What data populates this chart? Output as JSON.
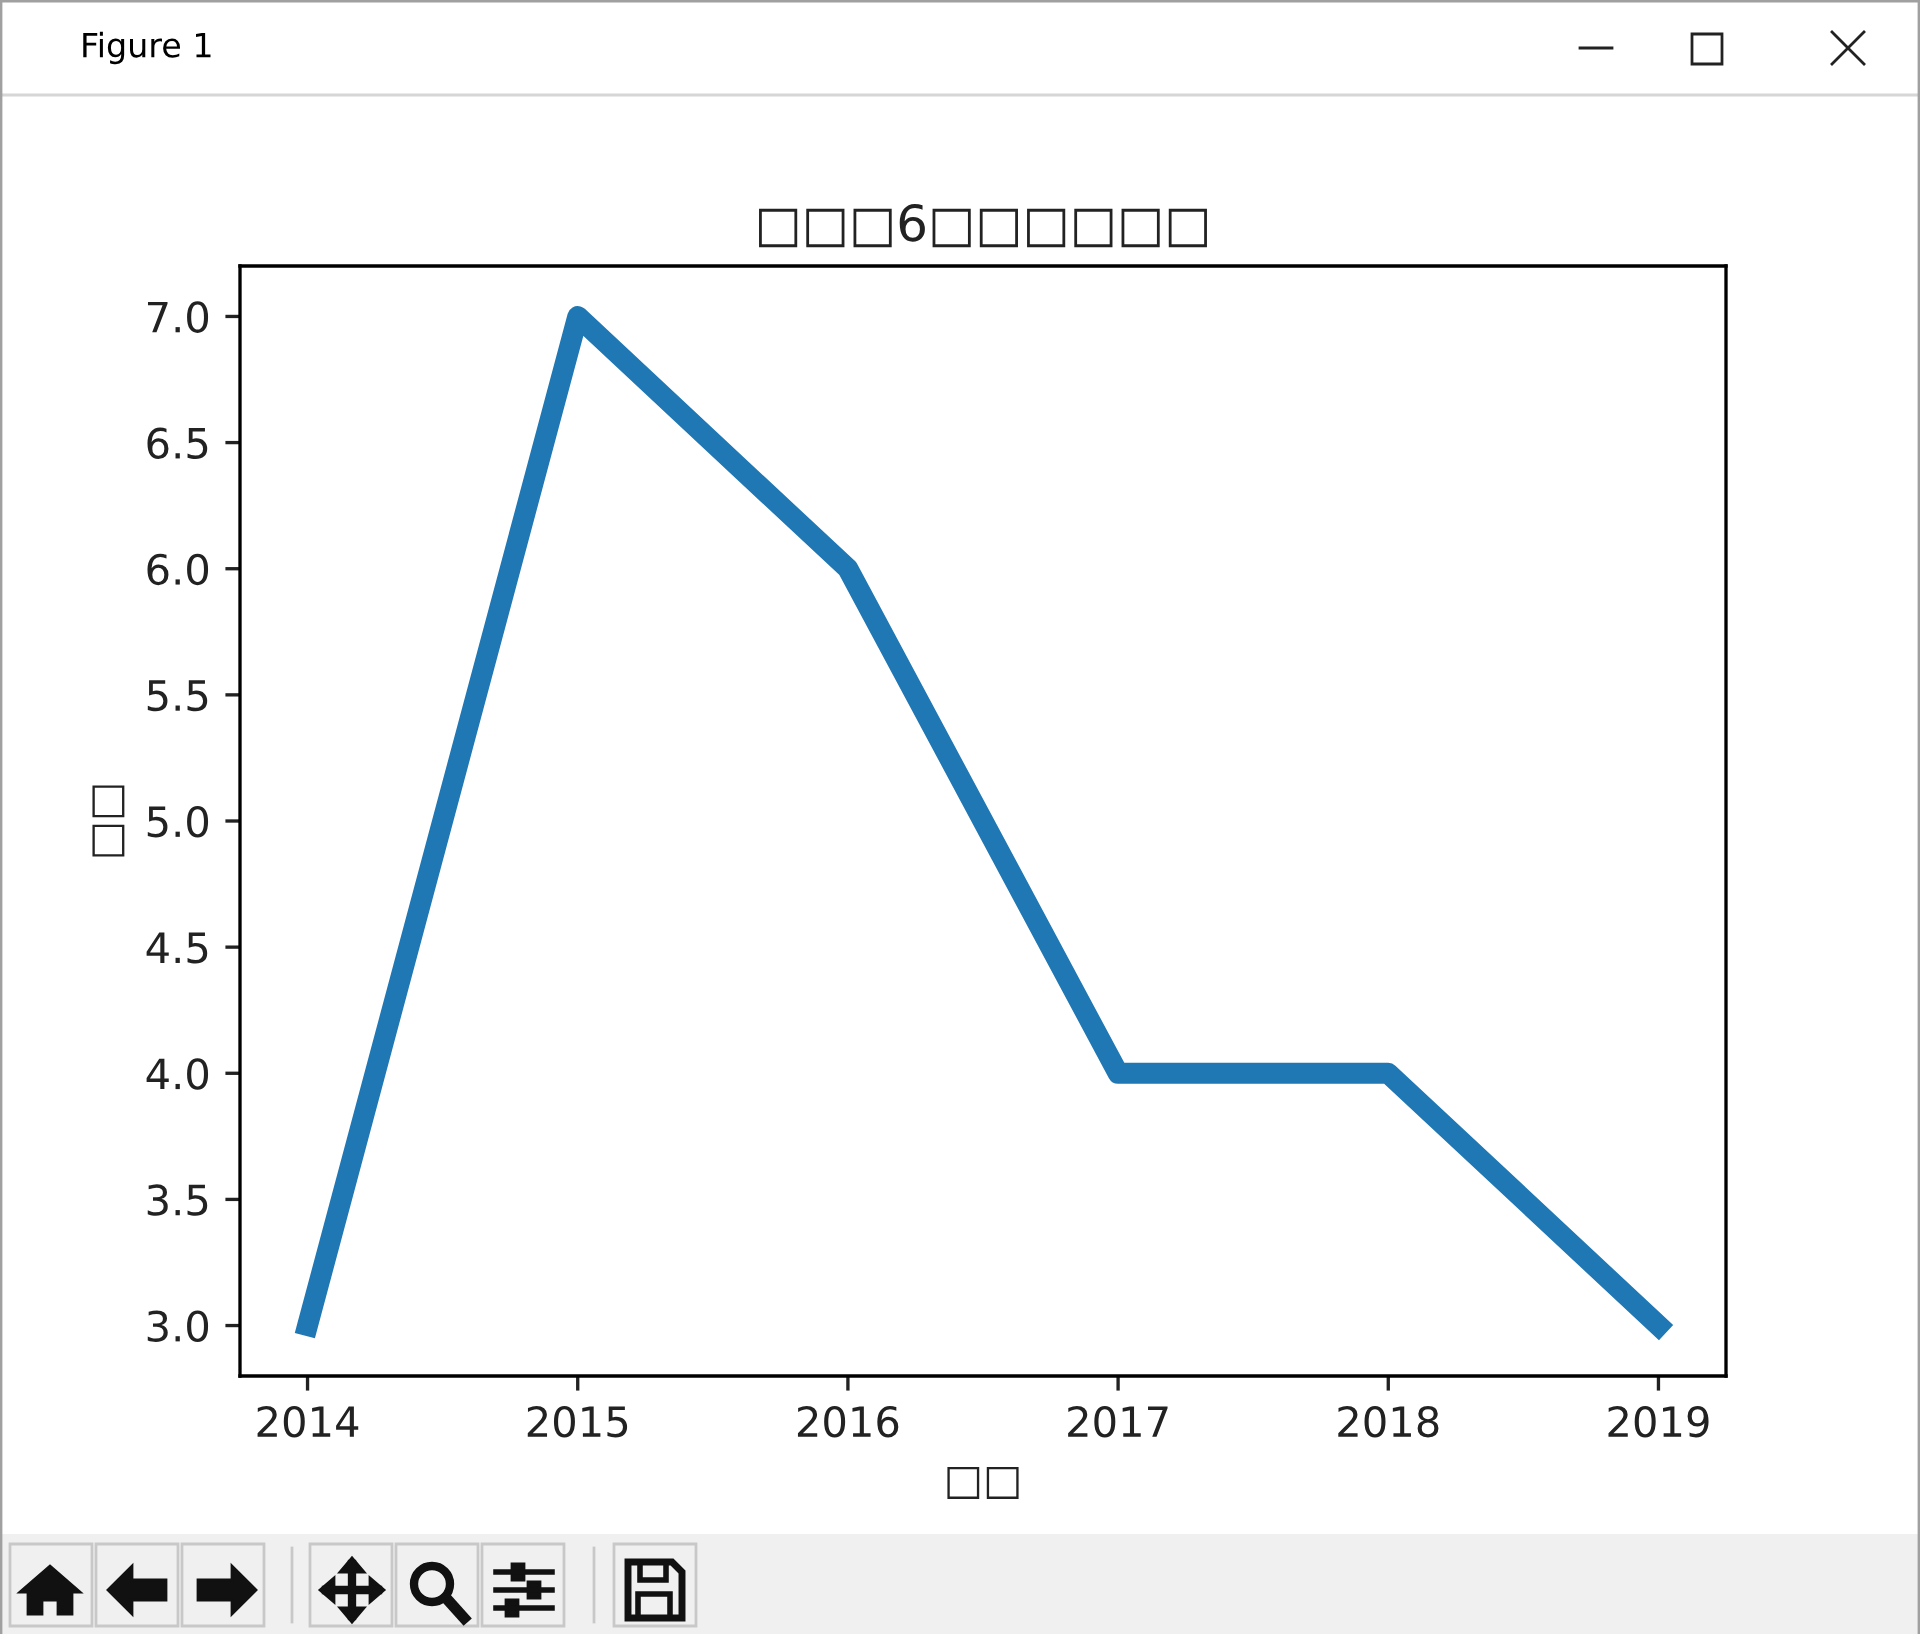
{
  "chart_data": {
    "type": "line",
    "title": "□□□6□□□□□□",
    "xlabel": "□□",
    "ylabel": "□□",
    "x": [
      2014,
      2015,
      2016,
      2017,
      2018,
      2019
    ],
    "series": [
      {
        "color": "#1f77b4",
        "values": [
          3,
          7,
          6,
          4,
          4,
          3
        ]
      }
    ],
    "xlim": [
      2013.75,
      2019.25
    ],
    "ylim": [
      2.8,
      7.2
    ],
    "xticks": [
      2014,
      2015,
      2016,
      2017,
      2018,
      2019
    ],
    "yticks": [
      {
        "value": 3,
        "label": "3.0"
      },
      {
        "value": 3.5,
        "label": "3.5"
      },
      {
        "value": 4,
        "label": "4.0"
      },
      {
        "value": 4.5,
        "label": "4.5"
      },
      {
        "value": 5,
        "label": "5.0"
      },
      {
        "value": 5.5,
        "label": "5.5"
      },
      {
        "value": 6,
        "label": "6.0"
      },
      {
        "value": 6.5,
        "label": "6.5"
      },
      {
        "value": 7,
        "label": "7.0"
      }
    ],
    "line_style": "solid",
    "annotations": [
      "Figure 1"
    ]
  }
}
